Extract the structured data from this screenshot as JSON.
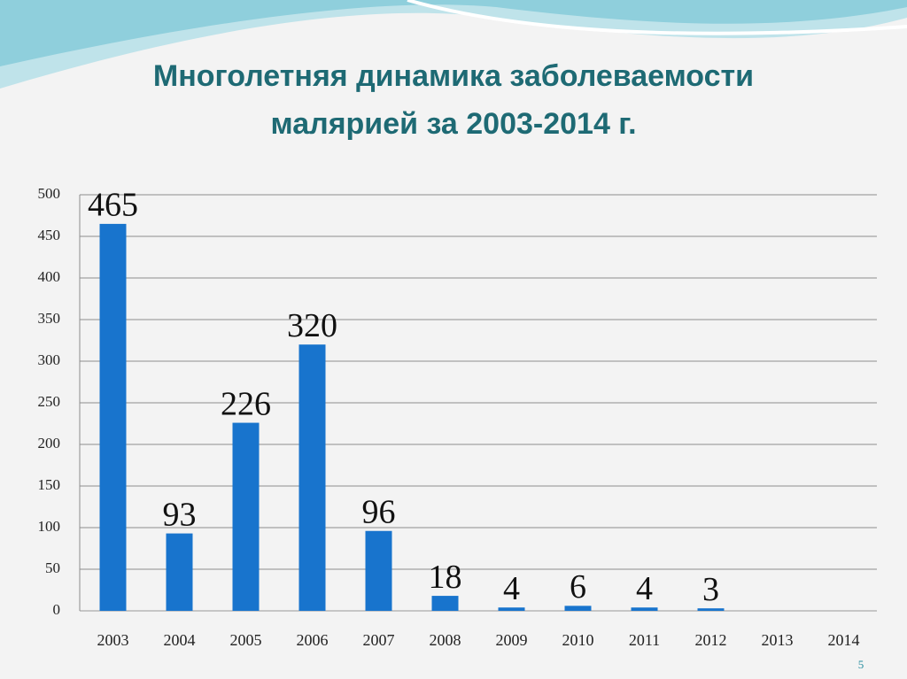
{
  "chart_data": {
    "type": "bar",
    "title": [
      "Многолетняя динамика заболеваемости",
      "малярией за 2003-2014 г."
    ],
    "categories": [
      "2003",
      "2004",
      "2005",
      "2006",
      "2007",
      "2008",
      "2009",
      "2010",
      "2011",
      "2012",
      "2013",
      "2014"
    ],
    "values": [
      465,
      93,
      226,
      320,
      96,
      18,
      4,
      6,
      4,
      3,
      null,
      null
    ],
    "color": "#1874cd",
    "ylim": [
      0,
      500
    ],
    "yticks": [
      0,
      50,
      100,
      150,
      200,
      250,
      300,
      350,
      400,
      450,
      500
    ],
    "grid": true,
    "data_labels": true
  },
  "slide_number": "5"
}
